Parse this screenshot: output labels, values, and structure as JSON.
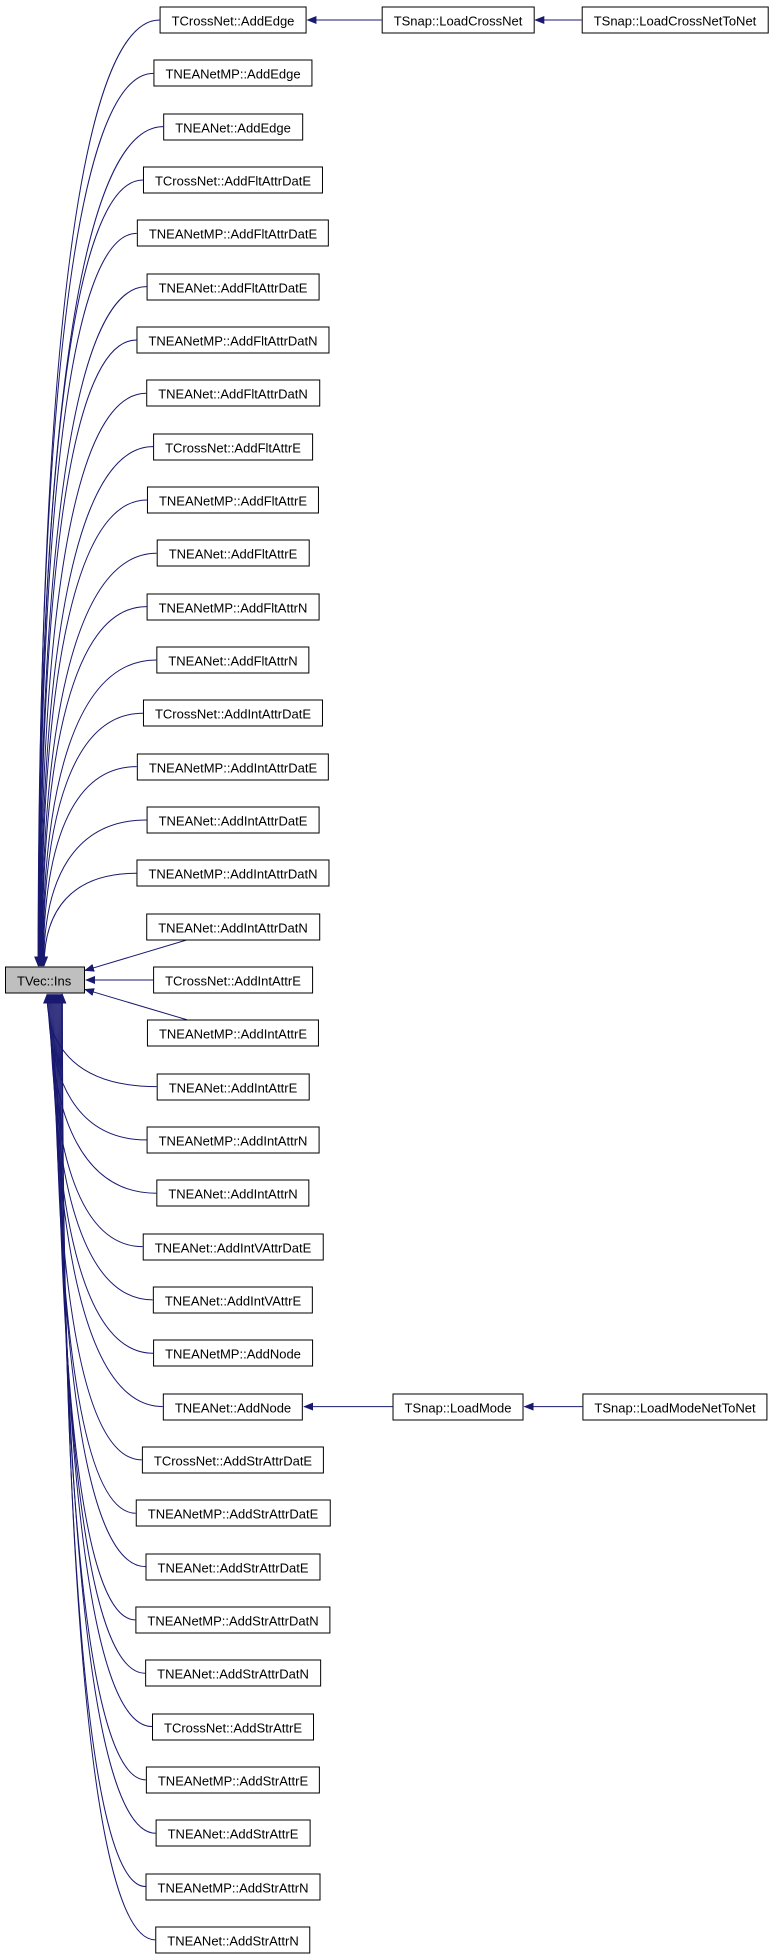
{
  "root": "TVec::Ins",
  "callers": [
    "TCrossNet::AddEdge",
    "TNEANetMP::AddEdge",
    "TNEANet::AddEdge",
    "TCrossNet::AddFltAttrDatE",
    "TNEANetMP::AddFltAttrDatE",
    "TNEANet::AddFltAttrDatE",
    "TNEANetMP::AddFltAttrDatN",
    "TNEANet::AddFltAttrDatN",
    "TCrossNet::AddFltAttrE",
    "TNEANetMP::AddFltAttrE",
    "TNEANet::AddFltAttrE",
    "TNEANetMP::AddFltAttrN",
    "TNEANet::AddFltAttrN",
    "TCrossNet::AddIntAttrDatE",
    "TNEANetMP::AddIntAttrDatE",
    "TNEANet::AddIntAttrDatE",
    "TNEANetMP::AddIntAttrDatN",
    "TNEANet::AddIntAttrDatN",
    "TCrossNet::AddIntAttrE",
    "TNEANetMP::AddIntAttrE",
    "TNEANet::AddIntAttrE",
    "TNEANetMP::AddIntAttrN",
    "TNEANet::AddIntAttrN",
    "TNEANet::AddIntVAttrDatE",
    "TNEANet::AddIntVAttrE",
    "TNEANetMP::AddNode",
    "TNEANet::AddNode",
    "TCrossNet::AddStrAttrDatE",
    "TNEANetMP::AddStrAttrDatE",
    "TNEANet::AddStrAttrDatE",
    "TNEANetMP::AddStrAttrDatN",
    "TNEANet::AddStrAttrDatN",
    "TCrossNet::AddStrAttrE",
    "TNEANetMP::AddStrAttrE",
    "TNEANet::AddStrAttrE",
    "TNEANetMP::AddStrAttrN",
    "TNEANet::AddStrAttrN"
  ],
  "chains": [
    {
      "from_caller": 0,
      "nodes": [
        "TSnap::LoadCrossNet",
        "TSnap::LoadCrossNetToNet"
      ]
    },
    {
      "from_caller": 26,
      "nodes": [
        "TSnap::LoadMode",
        "TSnap::LoadModeNetToNet"
      ]
    }
  ],
  "colors": {
    "edge": "#191970",
    "root_fill": "#bfbfbf",
    "node_border": "#000000"
  }
}
